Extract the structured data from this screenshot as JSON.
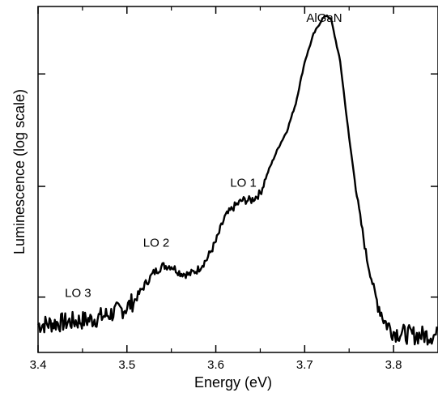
{
  "chart_data": {
    "type": "line",
    "xlabel": "Energy (eV)",
    "ylabel": "Luminescence (log scale)",
    "xlim": [
      3.4,
      3.85
    ],
    "ylim": [
      0,
      1
    ],
    "y_scale": "log",
    "y_tick_labels_shown": false,
    "grid": false,
    "legend": "none",
    "xticks": [
      3.4,
      3.5,
      3.6,
      3.7,
      3.8
    ],
    "xtick_labels": [
      "3.4",
      "3.5",
      "3.6",
      "3.7",
      "3.8"
    ],
    "line_color": "#000000",
    "annotations": [
      {
        "text": "LO 3",
        "x": 3.445,
        "y": 0.16
      },
      {
        "text": "LO 2",
        "x": 3.533,
        "y": 0.306
      },
      {
        "text": "LO 1",
        "x": 3.631,
        "y": 0.479
      },
      {
        "text": "AlGaN",
        "x": 3.722,
        "y": 0.955
      }
    ],
    "series": [
      {
        "x": [
          3.4,
          3.42,
          3.44,
          3.46,
          3.48,
          3.5,
          3.51,
          3.52,
          3.53,
          3.54,
          3.55,
          3.56,
          3.57,
          3.58,
          3.59,
          3.6,
          3.61,
          3.62,
          3.63,
          3.64,
          3.65,
          3.66,
          3.67,
          3.68,
          3.69,
          3.7,
          3.71,
          3.72,
          3.725,
          3.73,
          3.74,
          3.75,
          3.76,
          3.77,
          3.78,
          3.79,
          3.8,
          3.81,
          3.82,
          3.83,
          3.85
        ],
        "y": [
          0.08,
          0.085,
          0.09,
          0.095,
          0.11,
          0.13,
          0.155,
          0.195,
          0.23,
          0.25,
          0.25,
          0.23,
          0.225,
          0.24,
          0.27,
          0.32,
          0.39,
          0.42,
          0.44,
          0.44,
          0.46,
          0.53,
          0.59,
          0.64,
          0.72,
          0.84,
          0.92,
          0.965,
          0.975,
          0.96,
          0.84,
          0.62,
          0.43,
          0.27,
          0.16,
          0.09,
          0.06,
          0.055,
          0.05,
          0.05,
          0.05
        ]
      }
    ]
  }
}
